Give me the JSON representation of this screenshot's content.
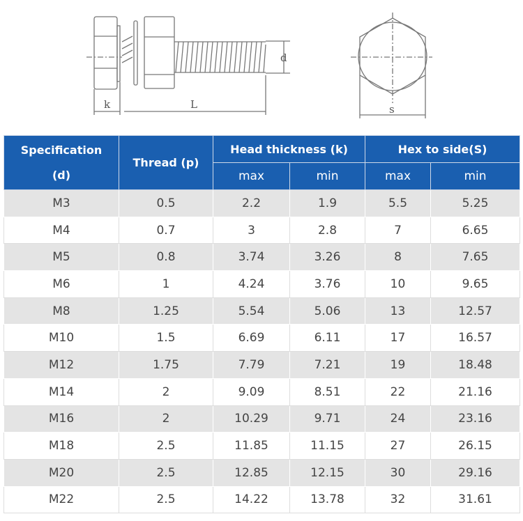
{
  "diagram": {
    "label_k": "k",
    "label_L": "L",
    "label_d": "d",
    "label_s": "s"
  },
  "colors": {
    "header_bg": "#1a5fb0",
    "row_alt_bg": "#e4e4e4"
  },
  "table": {
    "headers": {
      "spec_line1": "Specification",
      "spec_line2": "(d)",
      "thread": "Thread (p)",
      "head_thickness": "Head thickness (k)",
      "hex_to_side": "Hex to side(S)",
      "max": "max",
      "min": "min"
    },
    "rows": [
      [
        "M3",
        "0.5",
        "2.2",
        "1.9",
        "5.5",
        "5.25"
      ],
      [
        "M4",
        "0.7",
        "3",
        "2.8",
        "7",
        "6.65"
      ],
      [
        "M5",
        "0.8",
        "3.74",
        "3.26",
        "8",
        "7.65"
      ],
      [
        "M6",
        "1",
        "4.24",
        "3.76",
        "10",
        "9.65"
      ],
      [
        "M8",
        "1.25",
        "5.54",
        "5.06",
        "13",
        "12.57"
      ],
      [
        "M10",
        "1.5",
        "6.69",
        "6.11",
        "17",
        "16.57"
      ],
      [
        "M12",
        "1.75",
        "7.79",
        "7.21",
        "19",
        "18.48"
      ],
      [
        "M14",
        "2",
        "9.09",
        "8.51",
        "22",
        "21.16"
      ],
      [
        "M16",
        "2",
        "10.29",
        "9.71",
        "24",
        "23.16"
      ],
      [
        "M18",
        "2.5",
        "11.85",
        "11.15",
        "27",
        "26.15"
      ],
      [
        "M20",
        "2.5",
        "12.85",
        "12.15",
        "30",
        "29.16"
      ],
      [
        "M22",
        "2.5",
        "14.22",
        "13.78",
        "32",
        "31.61"
      ]
    ]
  }
}
